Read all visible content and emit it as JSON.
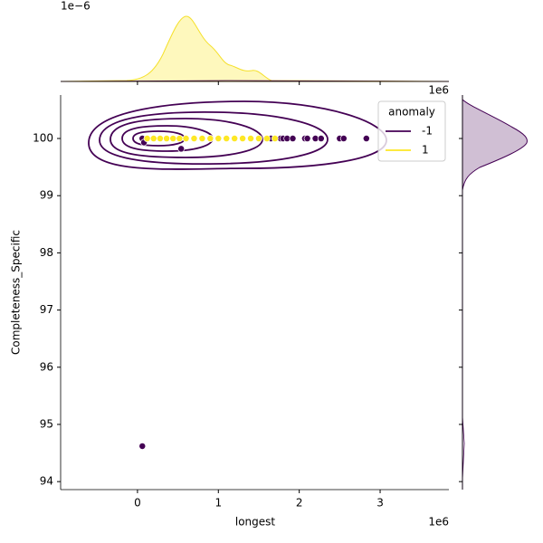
{
  "chart_data": {
    "type": "scatter",
    "xlabel": "longest",
    "ylabel": "Completeness_Specific",
    "x_offset_label": "1e6",
    "top_margin_offset_label": "1e−6",
    "right_margin_offset_label": "1e6",
    "xlim": [
      -950000,
      3850000
    ],
    "ylim": [
      93.86,
      100.76
    ],
    "xticks": [
      {
        "value": 0,
        "label": "0"
      },
      {
        "value": 1000000,
        "label": "1"
      },
      {
        "value": 2000000,
        "label": "2"
      },
      {
        "value": 3000000,
        "label": "3"
      }
    ],
    "yticks": [
      94,
      95,
      96,
      97,
      98,
      99,
      100
    ],
    "legend_title": "anomaly",
    "legend": "upper right",
    "series": [
      {
        "name": "-1",
        "color": "#440154",
        "x": [
          60000,
          80000,
          540000,
          60000,
          1650000,
          1770000,
          1800000,
          1850000,
          1920000,
          2070000,
          2100000,
          2200000,
          2270000,
          2500000,
          2550000,
          2830000
        ],
        "values": [
          100,
          99.93,
          99.82,
          94.62,
          100,
          100,
          100,
          100,
          100,
          100,
          100,
          100,
          100,
          100,
          100,
          100
        ]
      },
      {
        "name": "1",
        "color": "#fde725",
        "x": [
          120000,
          200000,
          280000,
          360000,
          440000,
          520000,
          600000,
          700000,
          800000,
          900000,
          1000000,
          1100000,
          1200000,
          1300000,
          1400000,
          1500000,
          1600000,
          1700000
        ],
        "values": [
          100,
          100,
          100,
          100,
          100,
          100,
          100,
          100,
          100,
          100,
          100,
          100,
          100,
          100,
          100,
          100,
          100,
          100
        ]
      }
    ]
  }
}
